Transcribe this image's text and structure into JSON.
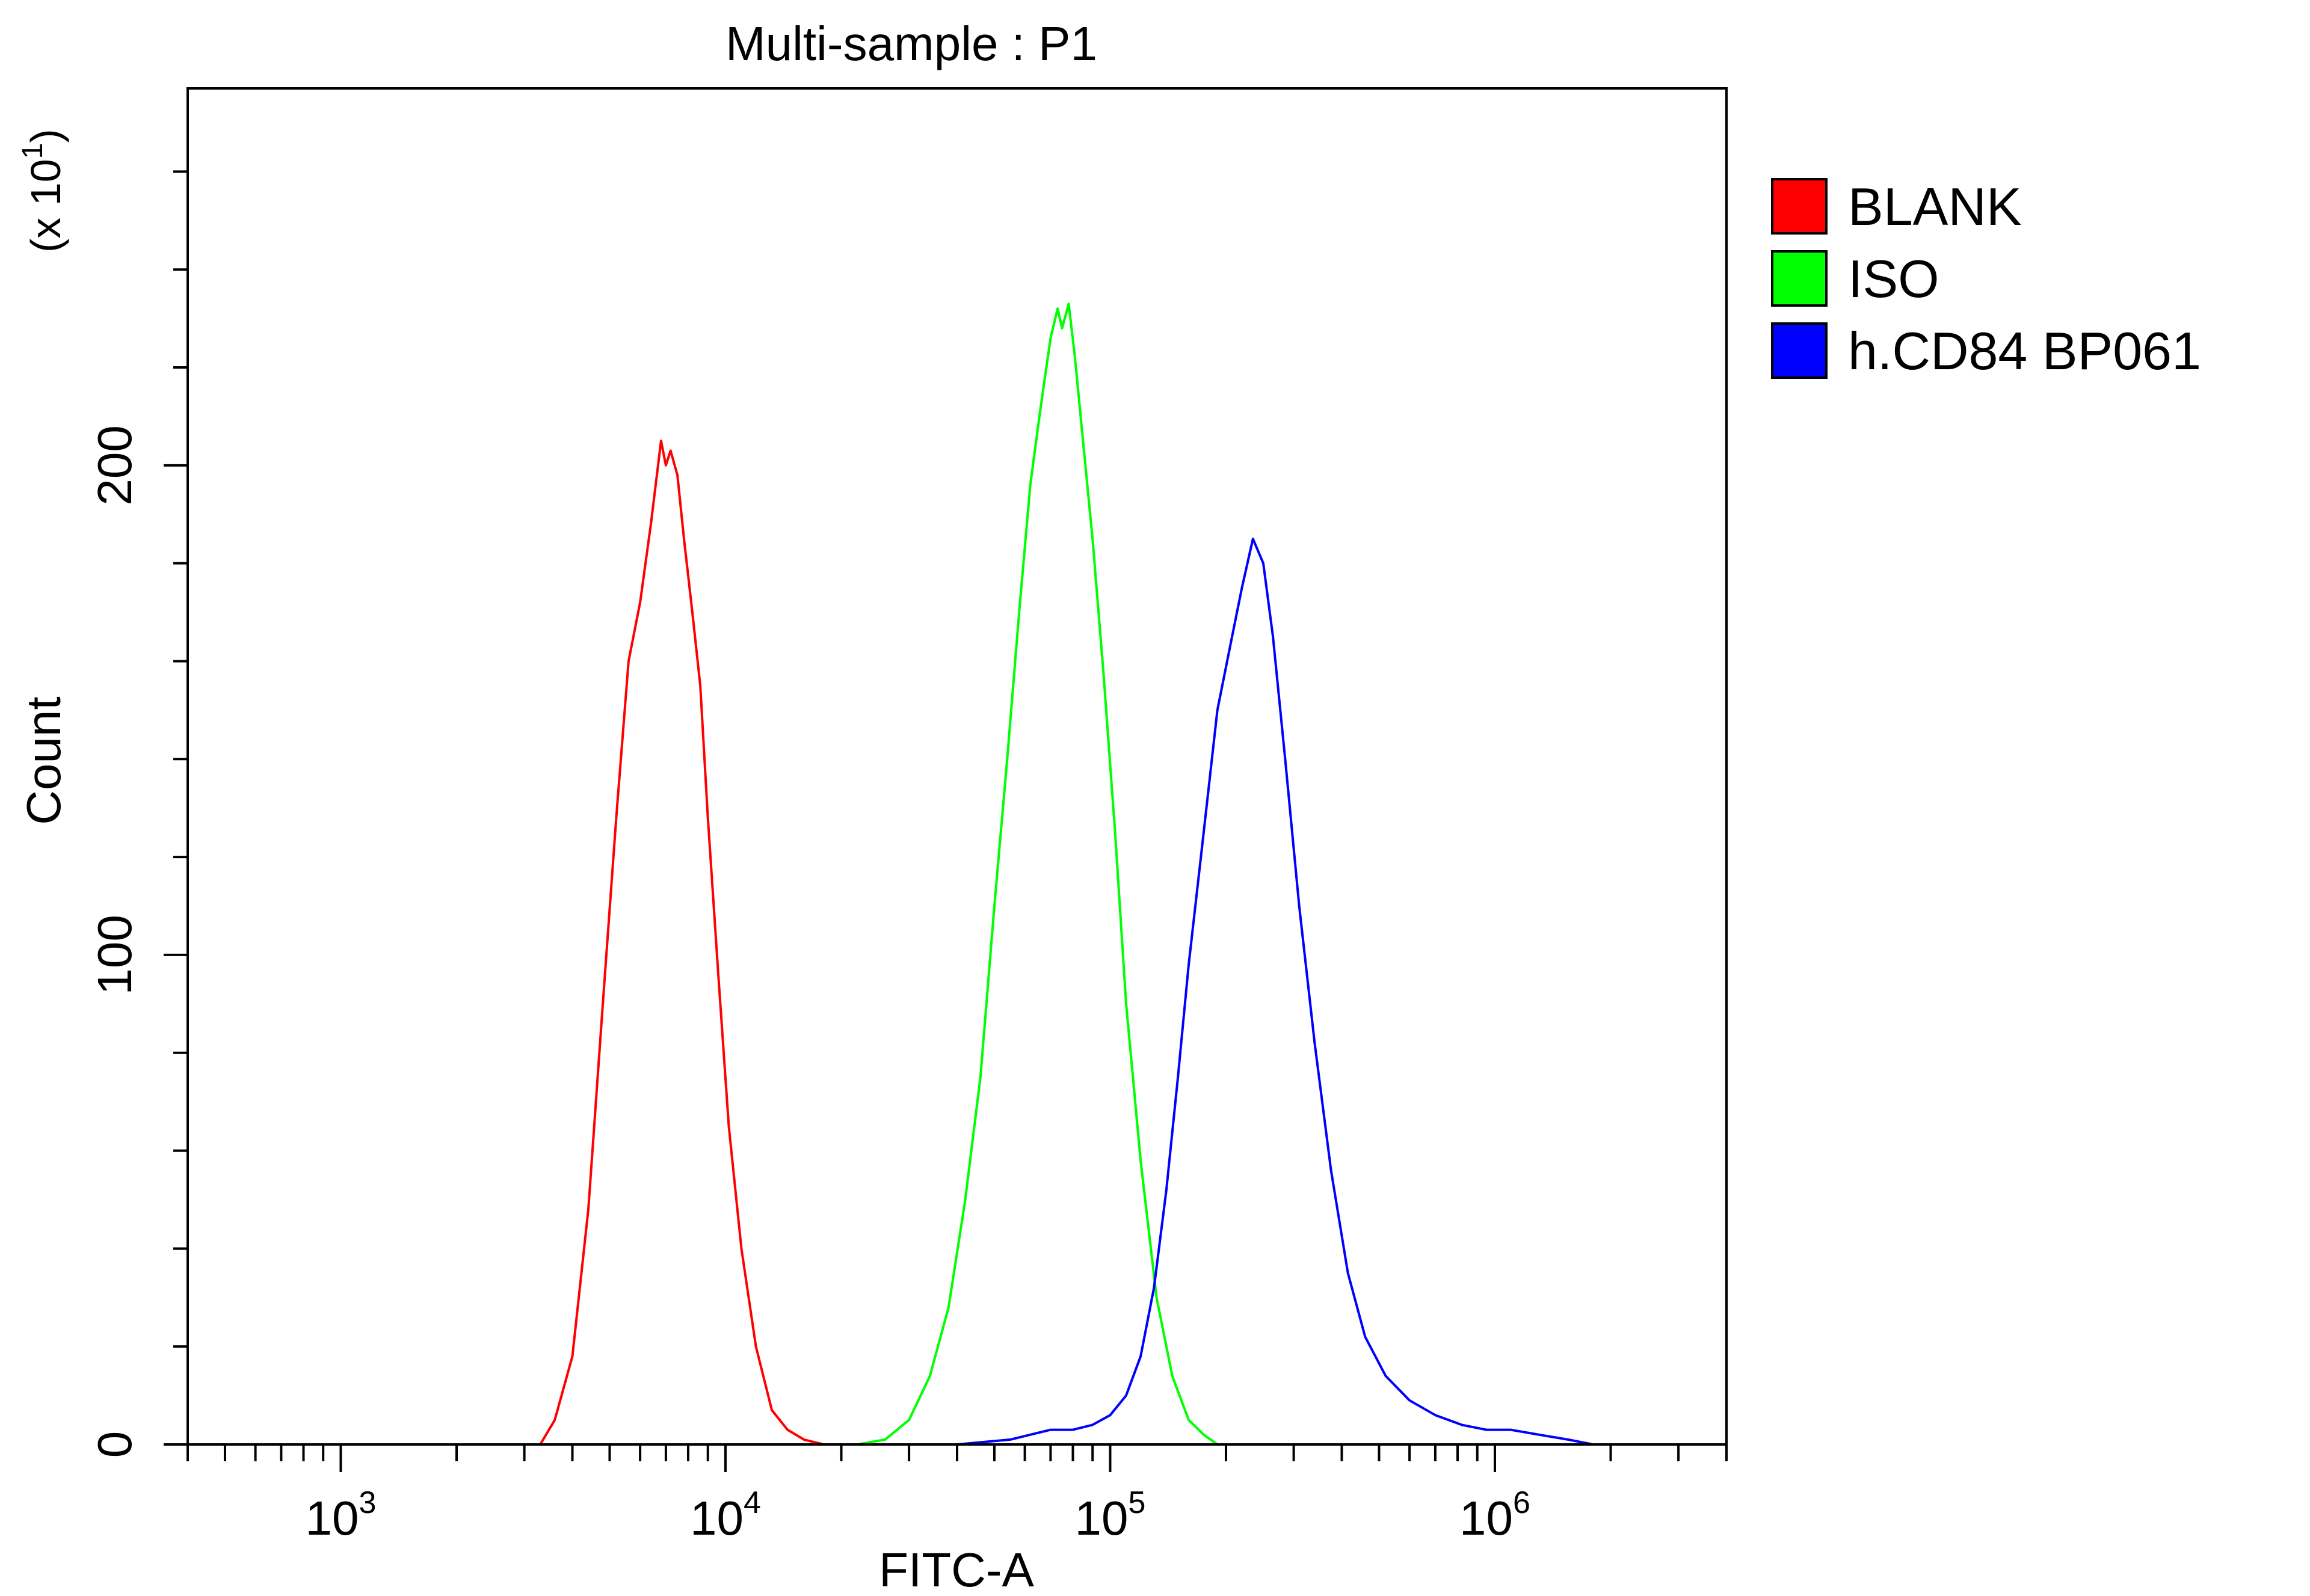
{
  "chart_data": {
    "type": "line",
    "title": "Multi-sample : P1",
    "xlabel": "FITC-A",
    "ylabel": "Count",
    "y_multiplier_label": "(x 10",
    "y_multiplier_exp": "1",
    "y_multiplier_close": ")",
    "x_scale": "log",
    "xlim": [
      400,
      4000000
    ],
    "ylim": [
      0,
      277
    ],
    "x_ticks": [
      {
        "base": "10",
        "exp": "3",
        "value": 1000
      },
      {
        "base": "10",
        "exp": "4",
        "value": 10000
      },
      {
        "base": "10",
        "exp": "5",
        "value": 100000
      },
      {
        "base": "10",
        "exp": "6",
        "value": 1000000
      }
    ],
    "y_ticks": [
      {
        "label": "0",
        "value": 0
      },
      {
        "label": "100",
        "value": 100
      },
      {
        "label": "200",
        "value": 200
      }
    ],
    "y_minor_ticks": [
      20,
      40,
      60,
      80,
      120,
      140,
      160,
      180,
      220,
      240,
      260
    ],
    "series": [
      {
        "name": "BLANK",
        "color": "#ff0000",
        "x": [
          3300,
          3600,
          4000,
          4400,
          4800,
          5200,
          5600,
          6000,
          6400,
          6800,
          7000,
          7200,
          7500,
          7800,
          8200,
          8600,
          9000,
          9600,
          10200,
          11000,
          12000,
          13200,
          14500,
          16000,
          18000,
          19000
        ],
        "y": [
          0,
          5,
          18,
          48,
          90,
          128,
          160,
          172,
          188,
          205,
          200,
          203,
          198,
          185,
          170,
          155,
          128,
          95,
          65,
          40,
          20,
          7,
          3,
          1,
          0,
          0
        ]
      },
      {
        "name": "ISO",
        "color": "#00ff00",
        "x": [
          22000,
          26000,
          30000,
          34000,
          38000,
          42000,
          46000,
          50000,
          54000,
          58000,
          62000,
          66000,
          70000,
          73000,
          75000,
          78000,
          81000,
          85000,
          90000,
          96000,
          103000,
          110000,
          120000,
          132000,
          145000,
          160000,
          175000,
          190000,
          200000
        ],
        "y": [
          0,
          1,
          5,
          14,
          28,
          50,
          75,
          110,
          140,
          170,
          196,
          212,
          226,
          232,
          228,
          233,
          222,
          205,
          185,
          158,
          125,
          90,
          58,
          30,
          14,
          5,
          2,
          0,
          0
        ]
      },
      {
        "name": "h.CD84 BP061",
        "color": "#0000ff",
        "x": [
          28000,
          40000,
          55000,
          70000,
          80000,
          90000,
          100000,
          110000,
          120000,
          130000,
          140000,
          150000,
          160000,
          175000,
          190000,
          205000,
          220000,
          235000,
          250000,
          265000,
          285000,
          310000,
          340000,
          375000,
          415000,
          460000,
          520000,
          600000,
          700000,
          820000,
          950000,
          1100000,
          1300000,
          1550000,
          1800000,
          2000000
        ],
        "y": [
          0,
          0,
          1,
          3,
          3,
          4,
          6,
          10,
          18,
          32,
          52,
          75,
          98,
          125,
          150,
          163,
          175,
          185,
          180,
          165,
          140,
          110,
          82,
          56,
          35,
          22,
          14,
          9,
          6,
          4,
          3,
          3,
          2,
          1,
          0,
          0
        ]
      }
    ]
  }
}
